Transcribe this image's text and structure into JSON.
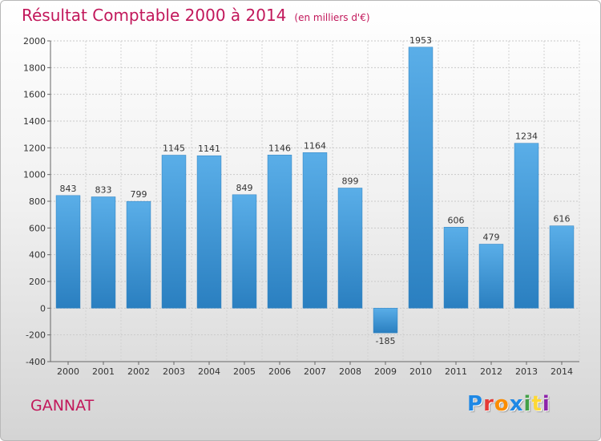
{
  "chart_data": {
    "type": "bar",
    "title": "Résultat Comptable 2000 à 2014",
    "subtitle": "(en milliers d'€)",
    "categories": [
      "2000",
      "2001",
      "2002",
      "2003",
      "2004",
      "2005",
      "2006",
      "2007",
      "2008",
      "2009",
      "2010",
      "2011",
      "2012",
      "2013",
      "2014"
    ],
    "values": [
      843,
      833,
      799,
      1145,
      1141,
      849,
      1146,
      1164,
      899,
      -185,
      1953,
      606,
      479,
      1234,
      616
    ],
    "data_labels": [
      "843",
      "833",
      "799",
      "1145",
      "1141",
      "849",
      "1146",
      "1164",
      "899",
      "-185",
      "1953",
      "606",
      "479",
      "1234",
      "616"
    ],
    "ylim": [
      -400,
      2000
    ],
    "yticks": [
      -400,
      -200,
      0,
      200,
      400,
      600,
      800,
      1000,
      1200,
      1400,
      1600,
      1800,
      2000
    ],
    "ytick_labels": [
      "-400",
      "-200",
      "0",
      "200",
      "400",
      "600",
      "800",
      "1000",
      "1200",
      "1400",
      "1600",
      "1800",
      "2000"
    ],
    "grid": true,
    "bar_color": "#4a9fdc"
  },
  "footer": {
    "city": "GANNAT",
    "logo_letters": [
      {
        "ch": "P",
        "color": "#1e88e5"
      },
      {
        "ch": "r",
        "color": "#e53935"
      },
      {
        "ch": "o",
        "color": "#fb8c00"
      },
      {
        "ch": "x",
        "color": "#1e88e5"
      },
      {
        "ch": "i",
        "color": "#43a047"
      },
      {
        "ch": "t",
        "color": "#fdd835"
      },
      {
        "ch": "i",
        "color": "#8e24aa"
      }
    ]
  }
}
